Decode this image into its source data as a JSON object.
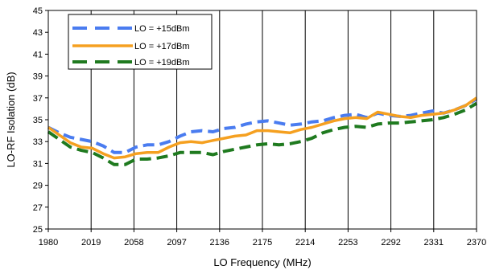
{
  "chart_data": {
    "type": "line",
    "title": "",
    "xlabel": "LO Frequency (MHz)",
    "ylabel": "LO-RF Isolation (dB)",
    "xlim": [
      1980,
      2370
    ],
    "ylim": [
      25,
      45
    ],
    "x_ticks": [
      1980,
      2019,
      2058,
      2097,
      2136,
      2175,
      2214,
      2253,
      2292,
      2331,
      2370
    ],
    "y_ticks": [
      25,
      27,
      29,
      31,
      33,
      35,
      37,
      39,
      41,
      43,
      45
    ],
    "grid": "vertical",
    "legend_position": "top-left",
    "series": [
      {
        "name": "LO = +15dBm",
        "color": "#4a7cf0",
        "style": "dashed",
        "x": [
          1980,
          1990,
          2000,
          2010,
          2020,
          2030,
          2040,
          2050,
          2060,
          2070,
          2080,
          2090,
          2100,
          2110,
          2120,
          2130,
          2140,
          2150,
          2160,
          2170,
          2180,
          2190,
          2200,
          2210,
          2220,
          2230,
          2240,
          2250,
          2260,
          2270,
          2280,
          2290,
          2300,
          2310,
          2320,
          2330,
          2340,
          2350,
          2360,
          2370
        ],
        "y": [
          34.3,
          33.8,
          33.4,
          33.2,
          33.0,
          32.6,
          32.0,
          32.0,
          32.5,
          32.7,
          32.7,
          33.0,
          33.5,
          33.9,
          34.0,
          33.9,
          34.2,
          34.3,
          34.6,
          34.8,
          34.9,
          34.7,
          34.5,
          34.6,
          34.8,
          34.9,
          35.2,
          35.4,
          35.5,
          35.2,
          35.6,
          35.4,
          35.3,
          35.4,
          35.6,
          35.8,
          35.6,
          35.9,
          36.3,
          36.9
        ]
      },
      {
        "name": "LO = +17dBm",
        "color": "#f5a020",
        "style": "solid",
        "x": [
          1980,
          1990,
          2000,
          2010,
          2020,
          2030,
          2040,
          2050,
          2060,
          2070,
          2080,
          2090,
          2100,
          2110,
          2120,
          2130,
          2140,
          2150,
          2160,
          2170,
          2180,
          2190,
          2200,
          2210,
          2220,
          2230,
          2240,
          2250,
          2260,
          2270,
          2280,
          2290,
          2300,
          2310,
          2320,
          2330,
          2340,
          2350,
          2360,
          2370
        ],
        "y": [
          34.3,
          33.6,
          32.9,
          32.5,
          32.4,
          31.9,
          31.5,
          31.6,
          31.9,
          32.0,
          32.0,
          32.5,
          32.9,
          33.0,
          32.9,
          33.1,
          33.3,
          33.5,
          33.6,
          34.0,
          34.0,
          33.9,
          33.8,
          34.1,
          34.3,
          34.6,
          34.9,
          35.1,
          35.2,
          35.1,
          35.7,
          35.5,
          35.3,
          35.2,
          35.4,
          35.5,
          35.6,
          35.9,
          36.3,
          37.0
        ]
      },
      {
        "name": "LO = +19dBm",
        "color": "#1f7a1f",
        "style": "dashed",
        "x": [
          1980,
          1990,
          2000,
          2010,
          2020,
          2030,
          2040,
          2050,
          2060,
          2070,
          2080,
          2090,
          2100,
          2110,
          2120,
          2130,
          2140,
          2150,
          2160,
          2170,
          2180,
          2190,
          2200,
          2210,
          2220,
          2230,
          2240,
          2250,
          2260,
          2270,
          2280,
          2290,
          2300,
          2310,
          2320,
          2330,
          2340,
          2350,
          2360,
          2370
        ],
        "y": [
          33.9,
          33.2,
          32.5,
          32.2,
          32.0,
          31.5,
          30.9,
          30.9,
          31.4,
          31.4,
          31.5,
          31.7,
          32.0,
          32.0,
          32.0,
          31.8,
          32.1,
          32.3,
          32.5,
          32.7,
          32.8,
          32.7,
          32.8,
          33.0,
          33.3,
          33.8,
          34.1,
          34.3,
          34.4,
          34.3,
          34.6,
          34.7,
          34.7,
          34.8,
          34.9,
          35.0,
          35.2,
          35.5,
          35.9,
          36.5
        ]
      }
    ]
  }
}
